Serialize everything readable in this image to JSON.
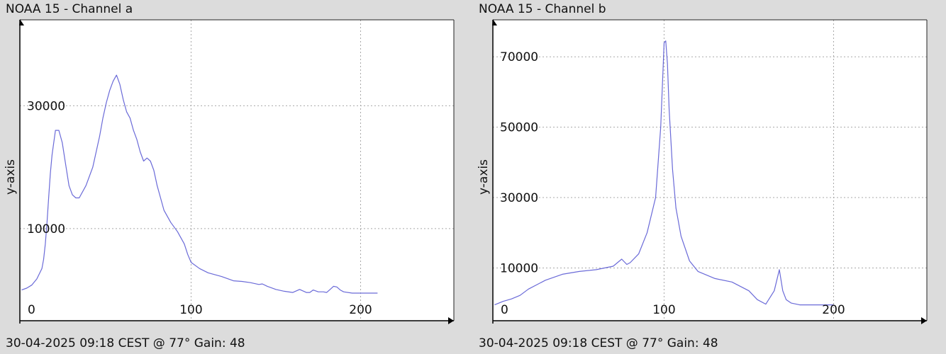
{
  "chart_data": [
    {
      "type": "line",
      "title": "NOAA 15 - Channel a",
      "footer": "30-04-2025 09:18 CEST @ 77° Gain: 48",
      "ylabel": "y-axis",
      "xlabel": "",
      "xlim": [
        -1,
        255
      ],
      "ylim": [
        -5000,
        44000
      ],
      "x_ticks": [
        0,
        100,
        200
      ],
      "y_ticks": [
        10000,
        30000
      ],
      "grid": true,
      "series": [
        {
          "color": "#6a6ad8",
          "x": [
            0,
            3,
            6,
            9,
            12,
            13,
            14,
            15,
            16,
            17,
            18,
            20,
            22,
            24,
            26,
            28,
            30,
            32,
            34,
            38,
            42,
            46,
            48,
            50,
            52,
            54,
            56,
            58,
            60,
            62,
            64,
            66,
            68,
            70,
            72,
            74,
            76,
            78,
            80,
            82,
            84,
            88,
            92,
            96,
            98,
            100,
            105,
            110,
            118,
            125,
            130,
            135,
            140,
            142,
            145,
            150,
            155,
            160,
            164,
            168,
            170,
            172,
            175,
            178,
            180,
            182,
            184,
            186,
            188,
            190,
            195,
            200,
            205,
            210
          ],
          "values": [
            0,
            300,
            800,
            1800,
            3500,
            5000,
            7500,
            11000,
            15000,
            19000,
            22000,
            26000,
            26000,
            24000,
            20500,
            17000,
            15500,
            15000,
            15000,
            17000,
            20000,
            25000,
            28000,
            30500,
            32500,
            34000,
            35000,
            33500,
            31000,
            29000,
            28000,
            26000,
            24500,
            22500,
            21000,
            21500,
            21000,
            19500,
            17000,
            15000,
            13000,
            11000,
            9500,
            7500,
            5800,
            4500,
            3500,
            2800,
            2200,
            1500,
            1400,
            1200,
            900,
            1000,
            600,
            100,
            -200,
            -400,
            100,
            -400,
            -400,
            0,
            -300,
            -300,
            -400,
            100,
            600,
            500,
            0,
            -300,
            -500,
            -500,
            -500,
            -500
          ]
        }
      ]
    },
    {
      "type": "line",
      "title": "NOAA 15 - Channel b",
      "footer": "30-04-2025 09:18 CEST @ 77° Gain: 48",
      "ylabel": "y-axis",
      "xlabel": "",
      "xlim": [
        -1,
        255
      ],
      "ylim": [
        -5000,
        80500
      ],
      "x_ticks": [
        0,
        100,
        200
      ],
      "y_ticks": [
        10000,
        30000,
        50000,
        70000
      ],
      "grid": true,
      "series": [
        {
          "color": "#6a6ad8",
          "x": [
            0,
            5,
            10,
            15,
            20,
            30,
            40,
            50,
            60,
            70,
            75,
            78,
            80,
            85,
            90,
            95,
            98,
            100,
            101,
            102,
            103,
            105,
            107,
            110,
            115,
            120,
            130,
            140,
            150,
            155,
            160,
            165,
            168,
            170,
            172,
            175,
            180,
            185,
            190,
            195,
            200
          ],
          "values": [
            -500,
            500,
            1200,
            2200,
            4000,
            6500,
            8200,
            9000,
            9500,
            10500,
            12500,
            11000,
            11500,
            14000,
            20000,
            30000,
            50000,
            74000,
            74500,
            68000,
            55000,
            38000,
            27000,
            19000,
            12000,
            9000,
            7000,
            6000,
            3500,
            1000,
            -300,
            3500,
            9500,
            3500,
            1000,
            0,
            -500,
            -500,
            -500,
            -500,
            -500
          ]
        }
      ]
    }
  ]
}
